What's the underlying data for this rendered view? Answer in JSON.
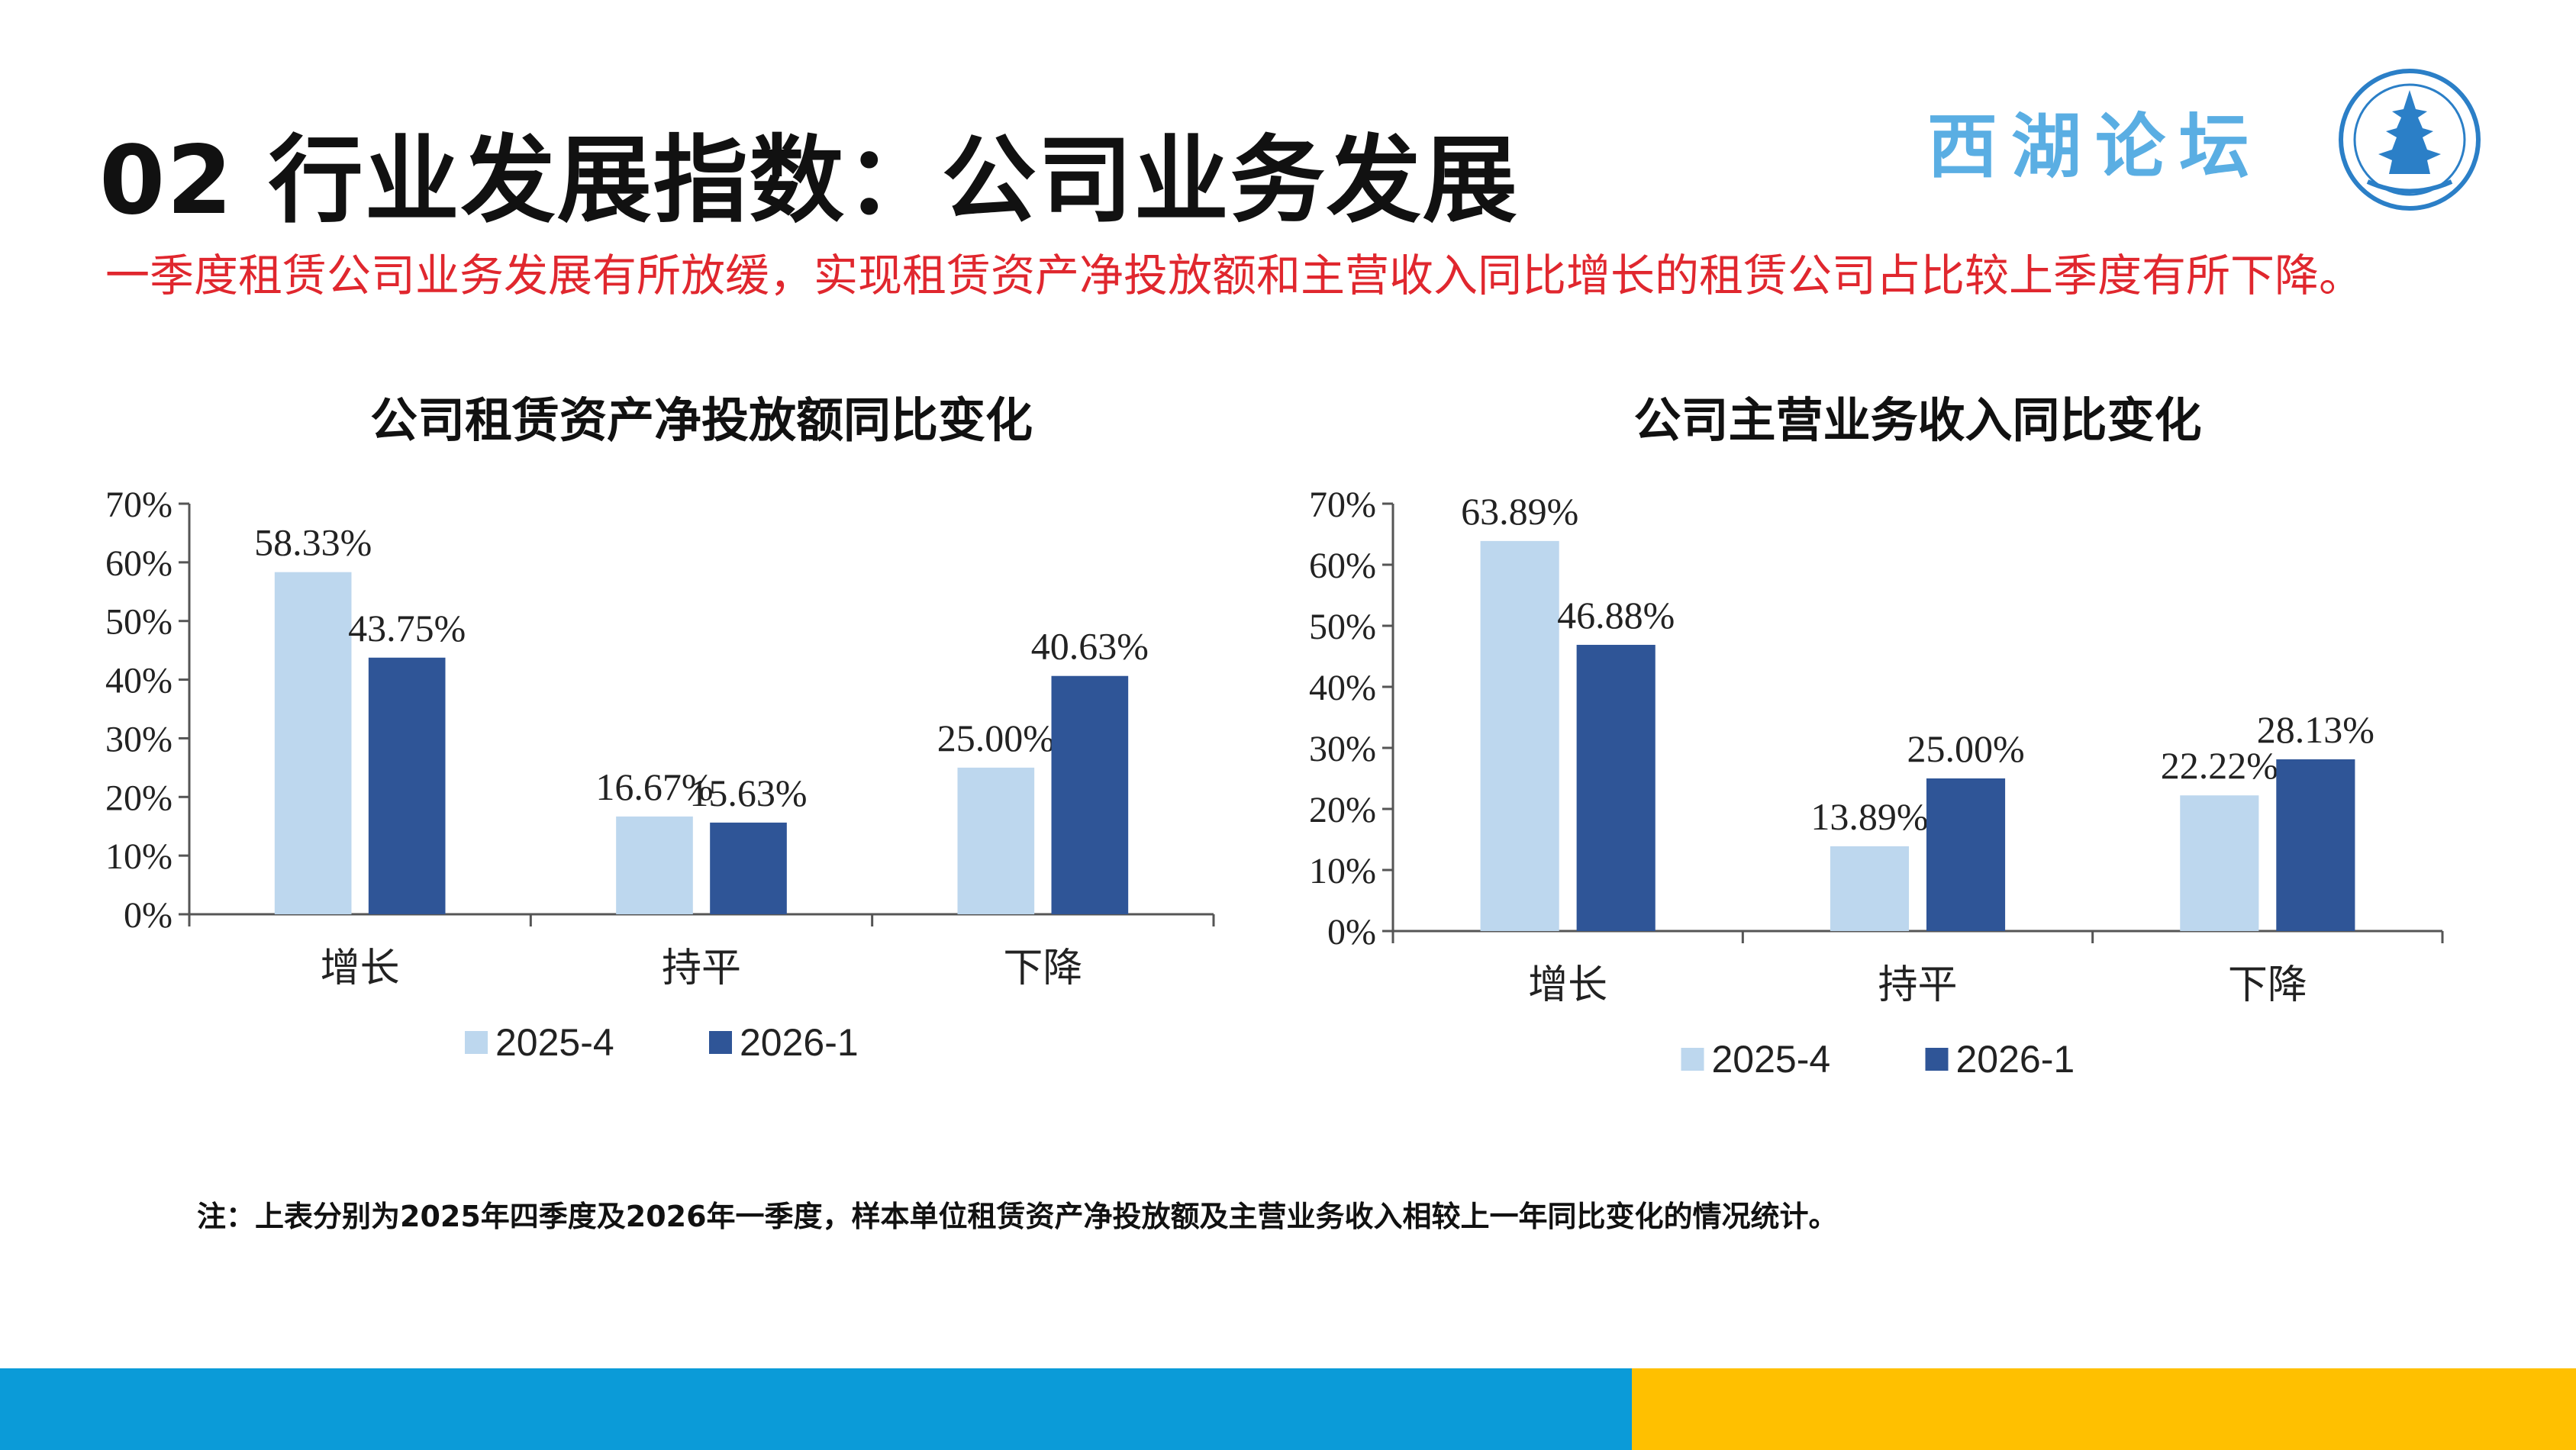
{
  "page": {
    "title": "02 行业发展指数：公司业务发展",
    "brand": "西湖论坛",
    "subtitle": "一季度租赁公司业务发展有所放缓，实现租赁资产净投放额和主营收入同比增长的租赁公司占比较上季度有所下降。",
    "note": "注：上表分别为2025年四季度及2026年一季度，样本单位租赁资产净投放额及主营业务收入相较上一年同比变化的情况统计。",
    "colors": {
      "series_2025_4": "#bdd7ee",
      "series_2026_1": "#2f5597",
      "subtitle": "#e0272e",
      "band_left": "#0b9bd8",
      "band_right": "#ffc000",
      "brand": "#5aaee3"
    },
    "logo_icon": "pagoda-seal-icon"
  },
  "chart_data": [
    {
      "type": "bar",
      "title": "公司租赁资产净投放额同比变化",
      "categories": [
        "增长",
        "持平",
        "下降"
      ],
      "series": [
        {
          "name": "2025-4",
          "values": [
            58.33,
            16.67,
            25.0
          ],
          "labels": [
            "58.33%",
            "16.67%",
            "25.00%"
          ]
        },
        {
          "name": "2026-1",
          "values": [
            43.75,
            15.63,
            40.63
          ],
          "labels": [
            "43.75%",
            "15.63%",
            "40.63%"
          ]
        }
      ],
      "ylim": [
        0,
        70
      ],
      "yticks": [
        "0%",
        "10%",
        "20%",
        "30%",
        "40%",
        "50%",
        "60%",
        "70%"
      ],
      "grid": false,
      "legend": "bottom"
    },
    {
      "type": "bar",
      "title": "公司主营业务收入同比变化",
      "categories": [
        "增长",
        "持平",
        "下降"
      ],
      "series": [
        {
          "name": "2025-4",
          "values": [
            63.89,
            13.89,
            22.22
          ],
          "labels": [
            "63.89%",
            "13.89%",
            "22.22%"
          ]
        },
        {
          "name": "2026-1",
          "values": [
            46.88,
            25.0,
            28.13
          ],
          "labels": [
            "46.88%",
            "25.00%",
            "28.13%"
          ]
        }
      ],
      "ylim": [
        0,
        70
      ],
      "yticks": [
        "0%",
        "10%",
        "20%",
        "30%",
        "40%",
        "50%",
        "60%",
        "70%"
      ],
      "grid": false,
      "legend": "bottom"
    }
  ]
}
